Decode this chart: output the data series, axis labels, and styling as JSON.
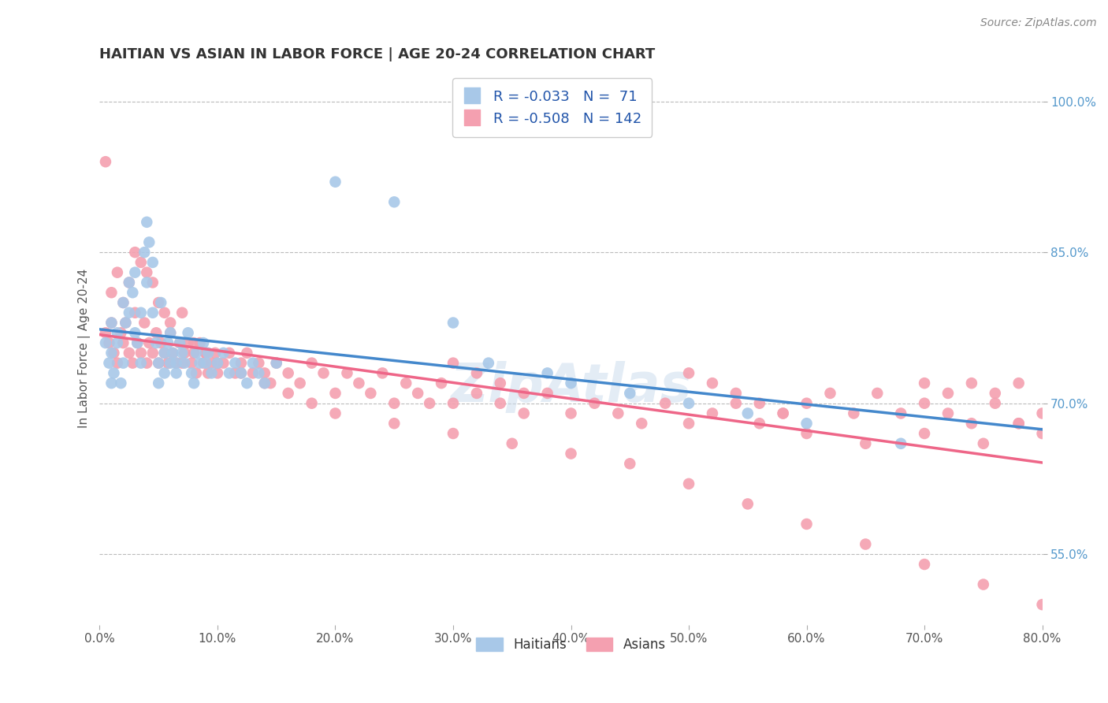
{
  "title": "HAITIAN VS ASIAN IN LABOR FORCE | AGE 20-24 CORRELATION CHART",
  "source": "Source: ZipAtlas.com",
  "ylabel": "In Labor Force | Age 20-24",
  "xmin": 0.0,
  "xmax": 0.8,
  "ymin": 0.48,
  "ymax": 1.03,
  "x_tick_labels": [
    "0.0%",
    "10.0%",
    "20.0%",
    "30.0%",
    "40.0%",
    "50.0%",
    "60.0%",
    "70.0%",
    "80.0%"
  ],
  "x_tick_vals": [
    0.0,
    0.1,
    0.2,
    0.3,
    0.4,
    0.5,
    0.6,
    0.7,
    0.8
  ],
  "y_tick_labels": [
    "55.0%",
    "70.0%",
    "85.0%",
    "100.0%"
  ],
  "y_tick_vals": [
    0.55,
    0.7,
    0.85,
    1.0
  ],
  "blue_color": "#a8c8e8",
  "pink_color": "#f4a0b0",
  "blue_line_color": "#4488cc",
  "pink_line_color": "#ee6688",
  "blue_R": -0.033,
  "blue_N": 71,
  "pink_R": -0.508,
  "pink_N": 142,
  "legend_label_blue": "Haitians",
  "legend_label_pink": "Asians",
  "grid_color": "#bbbbbb",
  "background_color": "#ffffff",
  "title_color": "#333333",
  "source_color": "#888888",
  "watermark": "ZipAtlas",
  "blue_scatter_x": [
    0.005,
    0.008,
    0.01,
    0.01,
    0.01,
    0.012,
    0.015,
    0.015,
    0.018,
    0.02,
    0.02,
    0.022,
    0.025,
    0.025,
    0.028,
    0.03,
    0.03,
    0.032,
    0.035,
    0.035,
    0.038,
    0.04,
    0.04,
    0.042,
    0.045,
    0.045,
    0.048,
    0.05,
    0.05,
    0.052,
    0.055,
    0.055,
    0.058,
    0.06,
    0.06,
    0.062,
    0.065,
    0.065,
    0.068,
    0.07,
    0.072,
    0.075,
    0.078,
    0.08,
    0.082,
    0.085,
    0.088,
    0.09,
    0.092,
    0.095,
    0.1,
    0.105,
    0.11,
    0.115,
    0.12,
    0.125,
    0.13,
    0.135,
    0.14,
    0.15,
    0.2,
    0.25,
    0.3,
    0.33,
    0.38,
    0.4,
    0.45,
    0.5,
    0.55,
    0.6,
    0.68
  ],
  "blue_scatter_y": [
    0.76,
    0.74,
    0.72,
    0.78,
    0.75,
    0.73,
    0.77,
    0.76,
    0.72,
    0.74,
    0.8,
    0.78,
    0.82,
    0.79,
    0.81,
    0.77,
    0.83,
    0.76,
    0.74,
    0.79,
    0.85,
    0.88,
    0.82,
    0.86,
    0.84,
    0.79,
    0.76,
    0.74,
    0.72,
    0.8,
    0.75,
    0.73,
    0.76,
    0.74,
    0.77,
    0.75,
    0.74,
    0.73,
    0.76,
    0.75,
    0.74,
    0.77,
    0.73,
    0.72,
    0.75,
    0.74,
    0.76,
    0.74,
    0.75,
    0.73,
    0.74,
    0.75,
    0.73,
    0.74,
    0.73,
    0.72,
    0.74,
    0.73,
    0.72,
    0.74,
    0.92,
    0.9,
    0.78,
    0.74,
    0.73,
    0.72,
    0.71,
    0.7,
    0.69,
    0.68,
    0.66
  ],
  "pink_scatter_x": [
    0.005,
    0.008,
    0.01,
    0.012,
    0.015,
    0.018,
    0.02,
    0.022,
    0.025,
    0.028,
    0.03,
    0.032,
    0.035,
    0.038,
    0.04,
    0.042,
    0.045,
    0.048,
    0.05,
    0.052,
    0.055,
    0.058,
    0.06,
    0.062,
    0.065,
    0.068,
    0.07,
    0.072,
    0.075,
    0.078,
    0.08,
    0.082,
    0.085,
    0.088,
    0.09,
    0.092,
    0.095,
    0.098,
    0.1,
    0.105,
    0.11,
    0.115,
    0.12,
    0.125,
    0.13,
    0.135,
    0.14,
    0.145,
    0.15,
    0.16,
    0.17,
    0.18,
    0.19,
    0.2,
    0.21,
    0.22,
    0.23,
    0.24,
    0.25,
    0.26,
    0.27,
    0.28,
    0.29,
    0.3,
    0.32,
    0.34,
    0.36,
    0.38,
    0.4,
    0.42,
    0.44,
    0.46,
    0.48,
    0.5,
    0.52,
    0.54,
    0.56,
    0.58,
    0.6,
    0.62,
    0.64,
    0.66,
    0.68,
    0.7,
    0.72,
    0.74,
    0.76,
    0.78,
    0.8,
    0.005,
    0.01,
    0.015,
    0.02,
    0.025,
    0.03,
    0.035,
    0.04,
    0.045,
    0.05,
    0.055,
    0.06,
    0.07,
    0.08,
    0.09,
    0.1,
    0.12,
    0.14,
    0.16,
    0.18,
    0.2,
    0.25,
    0.3,
    0.35,
    0.4,
    0.45,
    0.5,
    0.55,
    0.6,
    0.65,
    0.7,
    0.75,
    0.8,
    0.6,
    0.65,
    0.7,
    0.75,
    0.78,
    0.8,
    0.7,
    0.72,
    0.74,
    0.76,
    0.78,
    0.5,
    0.52,
    0.54,
    0.56,
    0.58,
    0.3,
    0.32,
    0.34,
    0.36
  ],
  "pink_scatter_y": [
    0.77,
    0.76,
    0.78,
    0.75,
    0.74,
    0.77,
    0.76,
    0.78,
    0.75,
    0.74,
    0.79,
    0.76,
    0.75,
    0.78,
    0.74,
    0.76,
    0.75,
    0.77,
    0.74,
    0.76,
    0.75,
    0.74,
    0.77,
    0.75,
    0.74,
    0.76,
    0.74,
    0.75,
    0.76,
    0.74,
    0.75,
    0.73,
    0.76,
    0.74,
    0.75,
    0.73,
    0.74,
    0.75,
    0.73,
    0.74,
    0.75,
    0.73,
    0.74,
    0.75,
    0.73,
    0.74,
    0.73,
    0.72,
    0.74,
    0.73,
    0.72,
    0.74,
    0.73,
    0.71,
    0.73,
    0.72,
    0.71,
    0.73,
    0.7,
    0.72,
    0.71,
    0.7,
    0.72,
    0.7,
    0.71,
    0.7,
    0.69,
    0.71,
    0.69,
    0.7,
    0.69,
    0.68,
    0.7,
    0.68,
    0.69,
    0.7,
    0.68,
    0.69,
    0.7,
    0.71,
    0.69,
    0.71,
    0.69,
    0.7,
    0.69,
    0.68,
    0.7,
    0.68,
    0.69,
    0.94,
    0.81,
    0.83,
    0.8,
    0.82,
    0.85,
    0.84,
    0.83,
    0.82,
    0.8,
    0.79,
    0.78,
    0.79,
    0.76,
    0.75,
    0.74,
    0.73,
    0.72,
    0.71,
    0.7,
    0.69,
    0.68,
    0.67,
    0.66,
    0.65,
    0.64,
    0.62,
    0.6,
    0.58,
    0.56,
    0.54,
    0.52,
    0.5,
    0.67,
    0.66,
    0.67,
    0.66,
    0.68,
    0.67,
    0.72,
    0.71,
    0.72,
    0.71,
    0.72,
    0.73,
    0.72,
    0.71,
    0.7,
    0.69,
    0.74,
    0.73,
    0.72,
    0.71
  ]
}
